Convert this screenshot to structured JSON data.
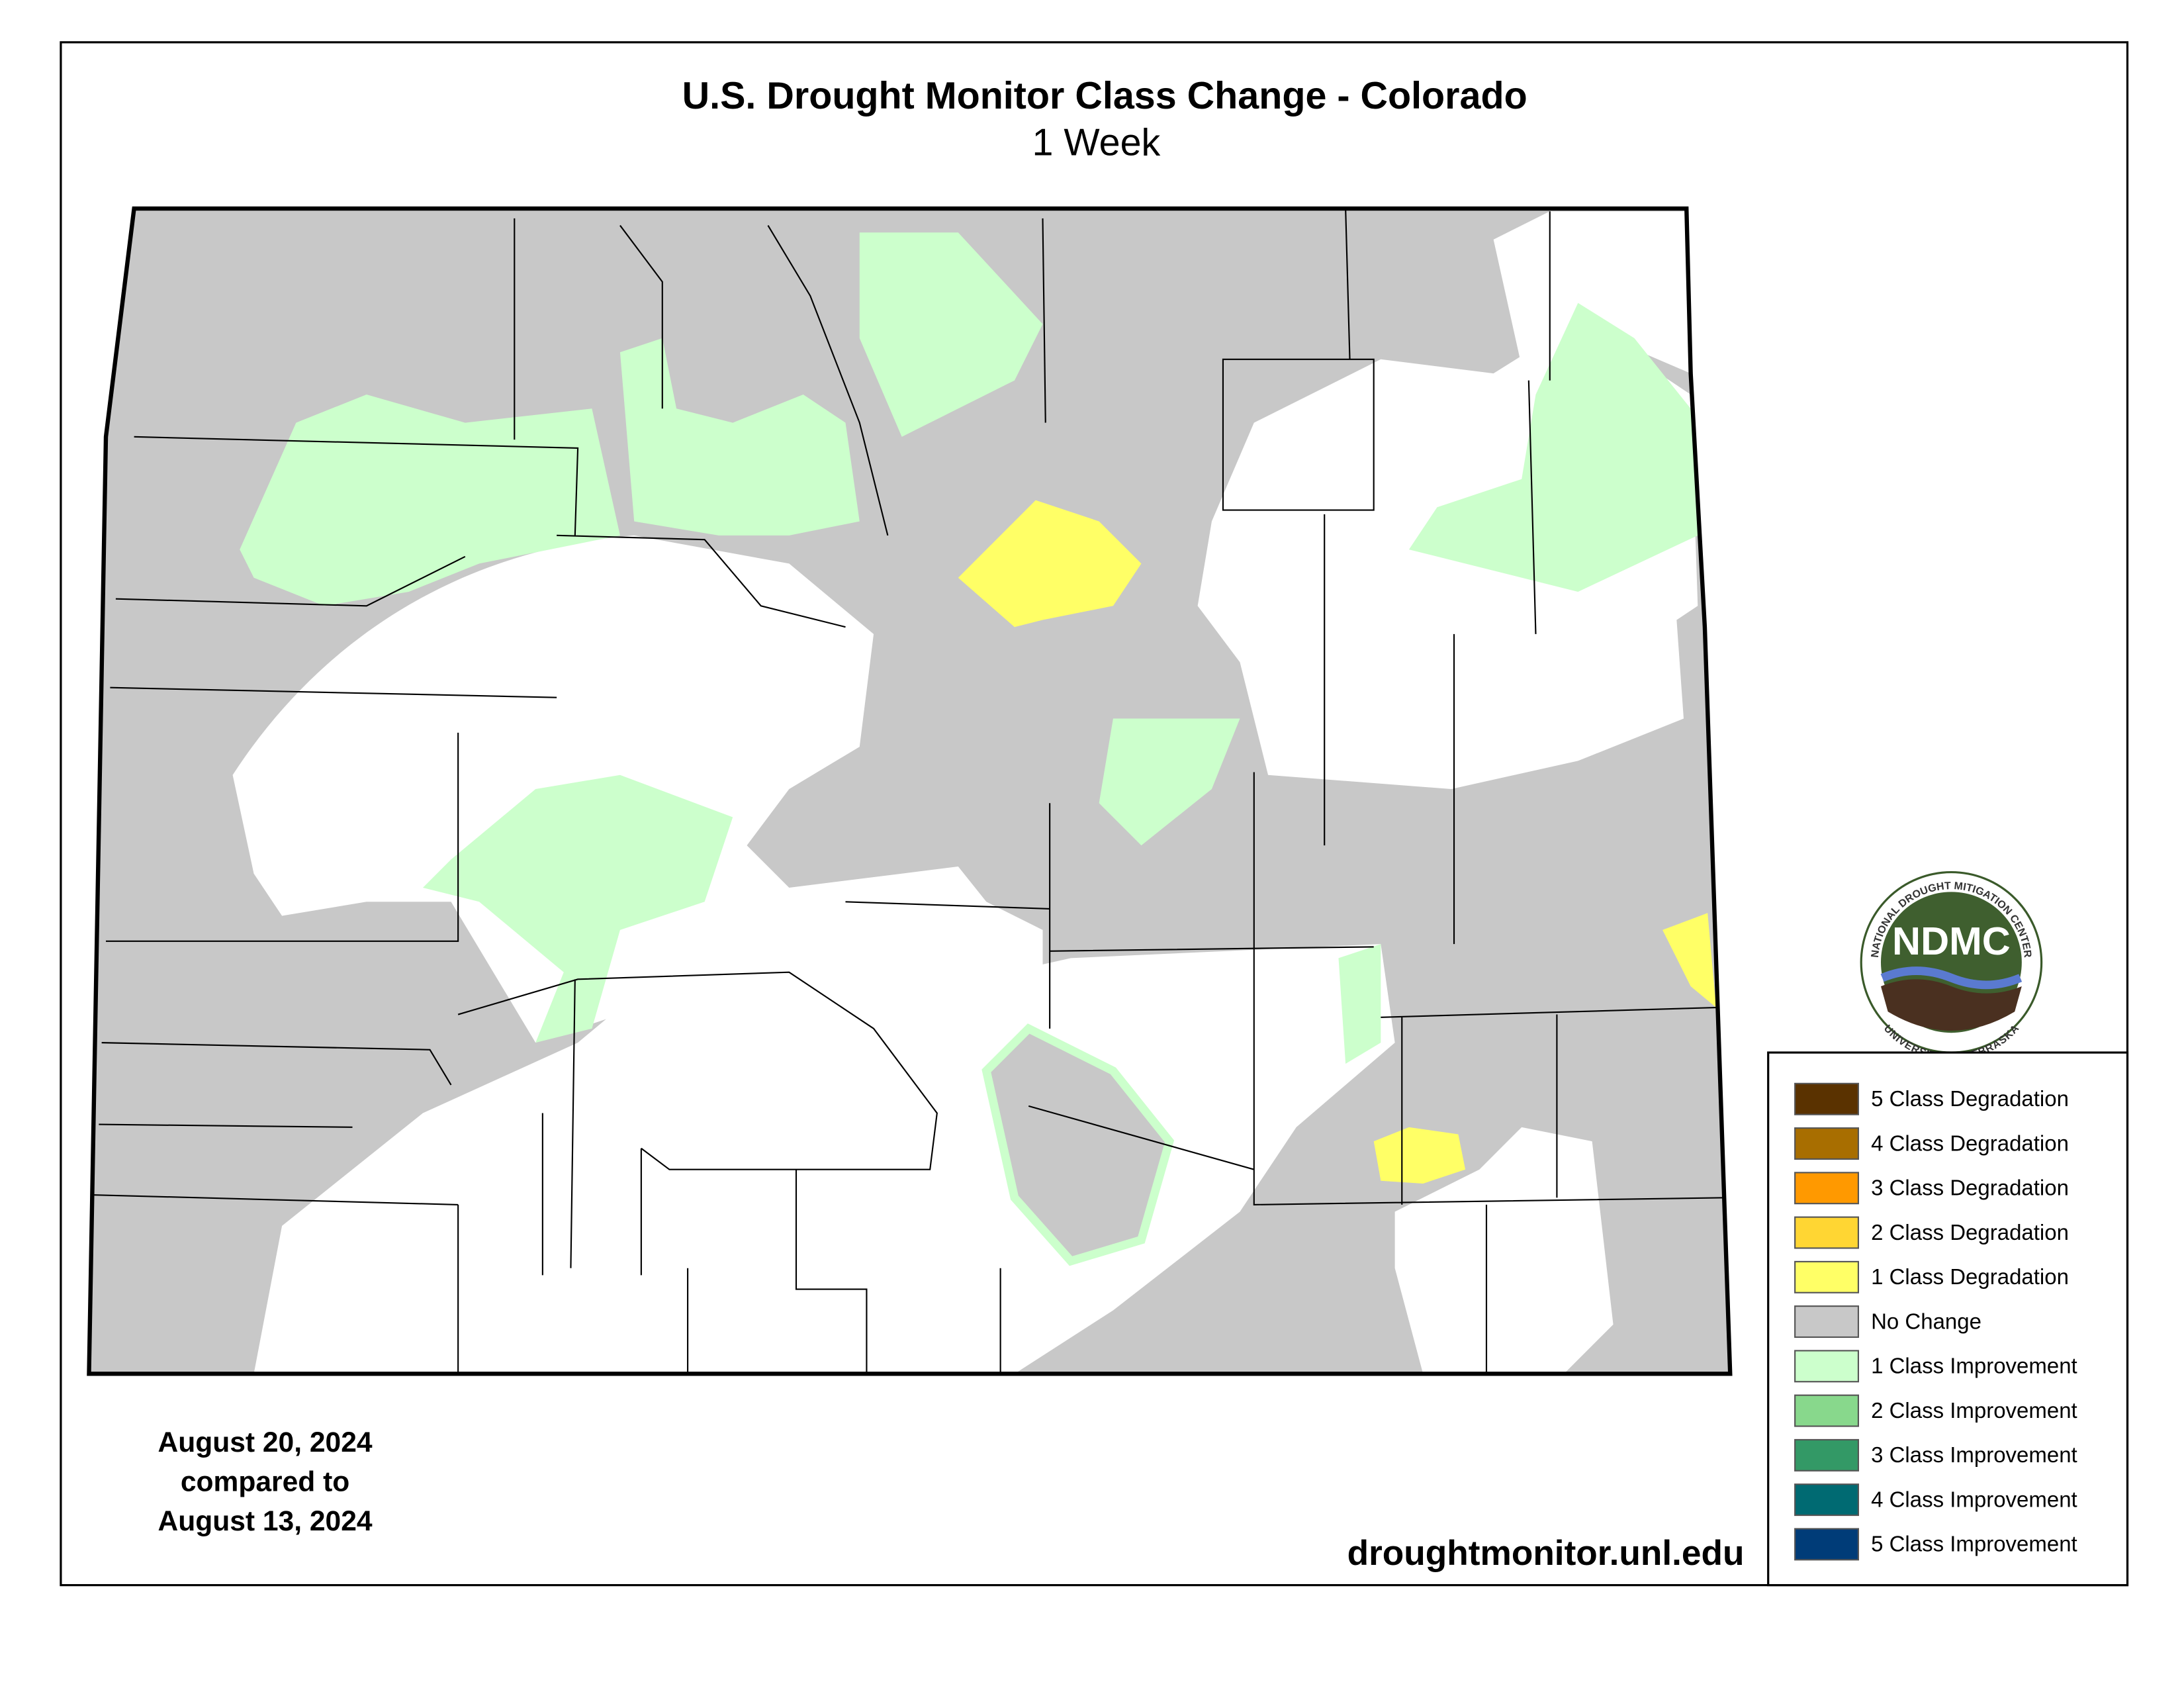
{
  "header": {
    "title": "U.S. Drought Monitor Class Change - Colorado",
    "subtitle": "1 Week"
  },
  "dates": {
    "lines": [
      "August 20, 2024",
      "compared to",
      "August 13, 2024"
    ]
  },
  "source": "droughtmonitor.unl.edu",
  "logo": {
    "abbr": "NDMC",
    "top_text": "NATIONAL DROUGHT MITIGATION CENTER",
    "bottom_text": "UNIVERSITY OF NEBRASKA"
  },
  "legend": {
    "items": [
      {
        "label": "5 Class Degradation",
        "color": "#5a3200"
      },
      {
        "label": "4 Class Degradation",
        "color": "#a86e00"
      },
      {
        "label": "3 Class Degradation",
        "color": "#ff9900"
      },
      {
        "label": "2 Class Degradation",
        "color": "#ffd633"
      },
      {
        "label": "1 Class Degradation",
        "color": "#ffff66"
      },
      {
        "label": "No Change",
        "color": "#c8c8c8"
      },
      {
        "label": "1 Class Improvement",
        "color": "#ccffcc"
      },
      {
        "label": "2 Class Improvement",
        "color": "#88d88c"
      },
      {
        "label": "3 Class Improvement",
        "color": "#339966"
      },
      {
        "label": "4 Class Improvement",
        "color": "#006a72"
      },
      {
        "label": "5 Class Improvement",
        "color": "#003c78"
      }
    ]
  }
}
